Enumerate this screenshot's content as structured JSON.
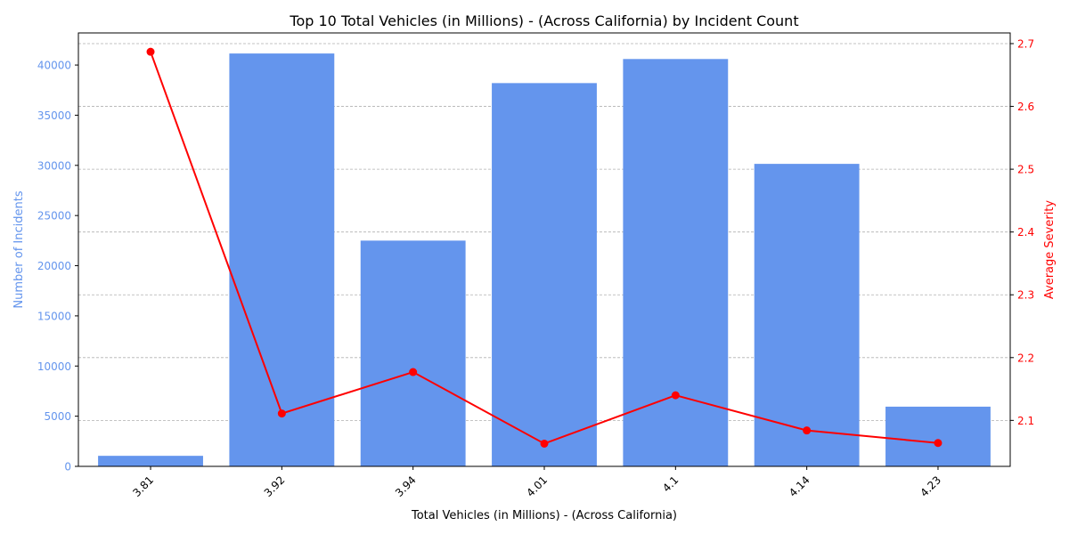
{
  "chart_data": {
    "type": "bar",
    "title": "Top 10 Total Vehicles (in Millions) -  (Across California) by Incident Count",
    "xlabel": "Total Vehicles (in Millions) -  (Across California)",
    "ylabel_left": "Number of Incidents",
    "ylabel_right": "Average Severity",
    "categories": [
      "3.81",
      "3.92",
      "3.94",
      "4.01",
      "4.1",
      "4.14",
      "4.23"
    ],
    "series": [
      {
        "type": "bar",
        "axis": "left",
        "values": [
          1050,
          41150,
          22500,
          38200,
          40600,
          30150,
          5950
        ]
      },
      {
        "type": "line",
        "axis": "right",
        "values": [
          2.687,
          2.111,
          2.177,
          2.063,
          2.14,
          2.084,
          2.064
        ]
      }
    ],
    "ylim_left": [
      0,
      43200
    ],
    "yticks_left": [
      0,
      5000,
      10000,
      15000,
      20000,
      25000,
      30000,
      35000,
      40000
    ],
    "ylim_right": [
      2.0268,
      2.717
    ],
    "yticks_right": [
      2.1,
      2.2,
      2.3,
      2.4,
      2.5,
      2.6,
      2.7
    ],
    "grid": "horizontal dashed, right axis",
    "colors": {
      "bar": "#6495ED",
      "line": "#FF0000",
      "left_axis": "#6495ED",
      "right_axis": "#FF0000"
    }
  }
}
